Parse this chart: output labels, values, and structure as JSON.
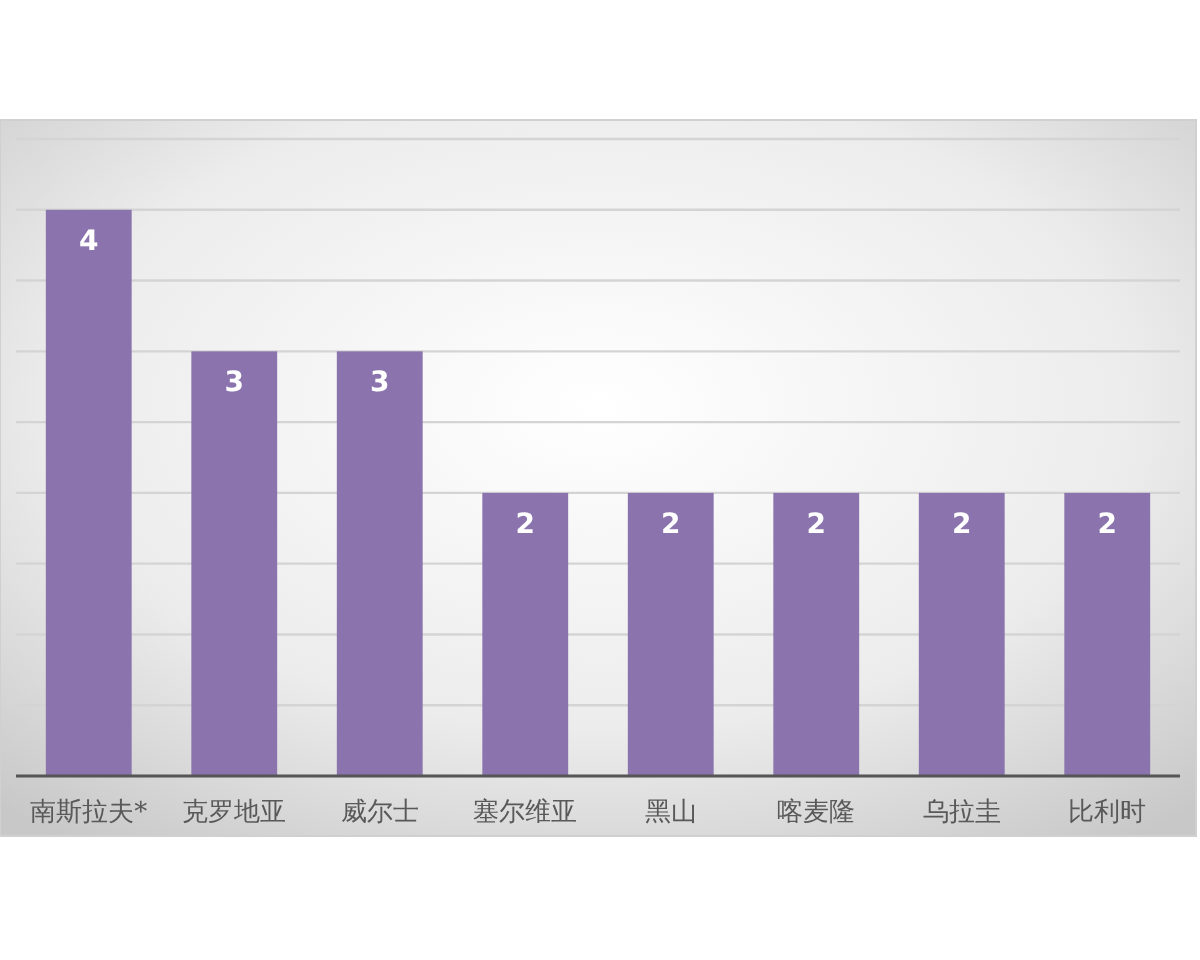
{
  "chart_data": {
    "type": "bar",
    "categories": [
      "南斯拉夫*",
      "克罗地亚",
      "威尔士",
      "塞尔维亚",
      "黑山",
      "喀麦隆",
      "乌拉圭",
      "比利时"
    ],
    "values": [
      4,
      3,
      3,
      2,
      2,
      2,
      2,
      2
    ],
    "color": "#8b74ad",
    "ylim": [
      0,
      4.5
    ],
    "yticks": [
      {
        "value": 0,
        "label": null
      },
      {
        "value": 0.5,
        "label": null
      },
      {
        "value": 1,
        "label": null
      },
      {
        "value": 1.5,
        "label": null
      },
      {
        "value": 2,
        "label": null
      },
      {
        "value": 2.5,
        "label": null
      },
      {
        "value": 3,
        "label": null
      },
      {
        "value": 3.5,
        "label": null
      },
      {
        "value": 4,
        "label": null
      },
      {
        "value": 4.5,
        "label": null
      }
    ],
    "grid": "y",
    "tick_labels": "x",
    "data_labels": true
  }
}
